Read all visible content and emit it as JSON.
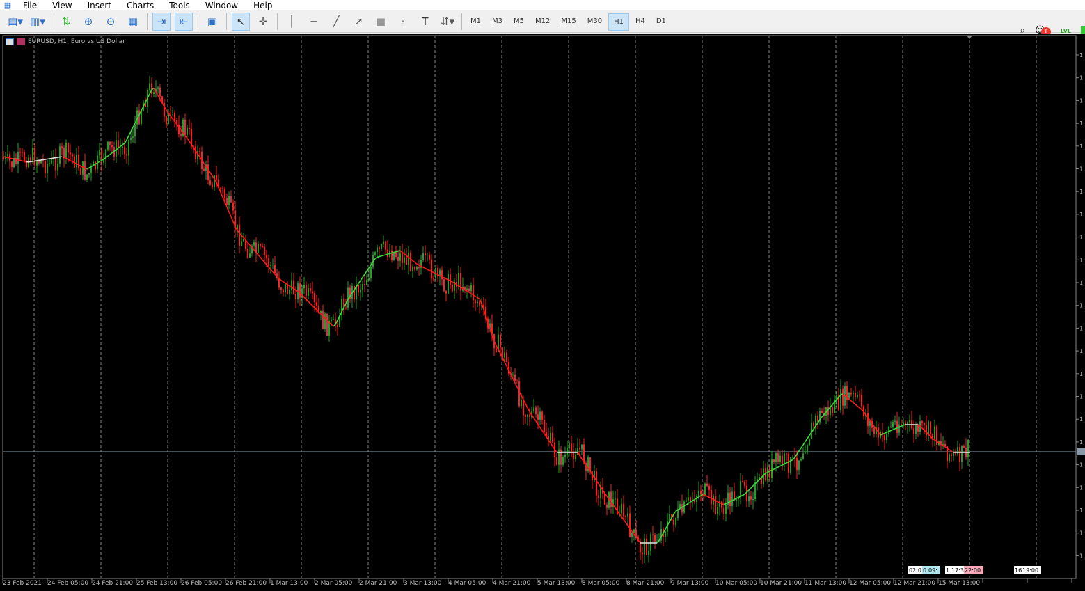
{
  "menu": [
    "File",
    "View",
    "Insert",
    "Charts",
    "Tools",
    "Window",
    "Help"
  ],
  "toolbar": {
    "icons": [
      "new-chart-icon",
      "profiles-icon",
      "auto-trading-icon",
      "zoom-in-icon",
      "zoom-out-icon",
      "tile-windows-icon",
      "auto-scroll-icon",
      "chart-shift-icon",
      "save-template-icon",
      "cursor-icon",
      "crosshair-icon",
      "vertical-line-icon",
      "horizontal-line-icon",
      "trendline-icon",
      "arrow-icon",
      "rectangle-icon",
      "fibonacci-icon",
      "text-icon",
      "arrows-icon"
    ],
    "timeframes": [
      "M1",
      "M3",
      "M5",
      "M12",
      "M15",
      "M30",
      "H1",
      "H4",
      "D1"
    ],
    "active_timeframe": "H1",
    "notifications": "1",
    "lvl_label": "LVL"
  },
  "chart": {
    "title": "EURUSD, H1:  Euro vs US Dollar",
    "colors": {
      "bull": "#1fa31f",
      "bear": "#ff2020",
      "ma_up": "#3fd83f",
      "ma_down": "#ff1a1a",
      "ma_flat": "#e0e0e0",
      "grid": "#808080"
    },
    "x_labels": [
      "23 Feb 2021",
      "24 Feb 05:00",
      "24 Feb 21:00",
      "25 Feb 13:00",
      "26 Feb 05:00",
      "26 Feb 21:00",
      "1 Mar 13:00",
      "2 Mar 05:00",
      "2 Mar 21:00",
      "3 Mar 13:00",
      "4 Mar 05:00",
      "4 Mar 21:00",
      "5 Mar 13:00",
      "8 Mar 05:00",
      "8 Mar 21:00",
      "9 Mar 13:00",
      "10 Mar 05:00",
      "10 Mar 21:00",
      "11 Mar 13:00",
      "12 Mar 05:00",
      "12 Mar 21:00",
      "15 Mar 13:00"
    ],
    "y_label_prefix": "1.",
    "session_tags": [
      "02:0",
      "0",
      "09:",
      "1",
      "17:3",
      "22:00",
      "19:00",
      "16"
    ]
  }
}
